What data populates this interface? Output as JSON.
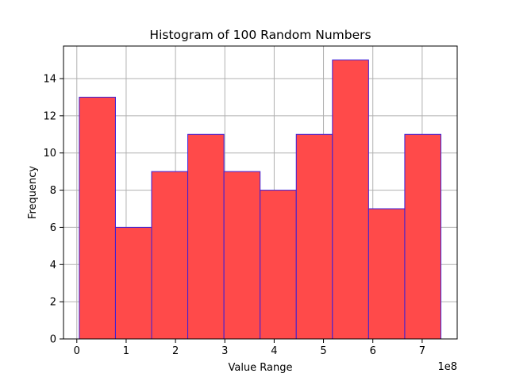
{
  "chart_data": {
    "type": "bar",
    "title": "Histogram of 100 Random Numbers",
    "xlabel": "Value Range",
    "ylabel": "Frequency",
    "x_offset_label": "1e8",
    "bin_edges": [
      5000000,
      78300000,
      151600000,
      224900000,
      298200000,
      371500000,
      444800000,
      518100000,
      591400000,
      664700000,
      738000000
    ],
    "values": [
      13,
      6,
      9,
      11,
      9,
      8,
      11,
      15,
      7,
      11
    ],
    "xlim": [
      -27000000,
      771000000
    ],
    "ylim": [
      0,
      15.75
    ],
    "xticks": [
      0,
      100000000,
      200000000,
      300000000,
      400000000,
      500000000,
      600000000,
      700000000
    ],
    "xtick_labels": [
      "0",
      "1",
      "2",
      "3",
      "4",
      "5",
      "6",
      "7"
    ],
    "yticks": [
      0,
      2,
      4,
      6,
      8,
      10,
      12,
      14
    ],
    "ytick_labels": [
      "0",
      "2",
      "4",
      "6",
      "8",
      "10",
      "12",
      "14"
    ],
    "grid": true,
    "bar_fill": "#ff4a4a",
    "bar_edge": "#3b1fd9",
    "grid_color": "#b0b0b0"
  }
}
